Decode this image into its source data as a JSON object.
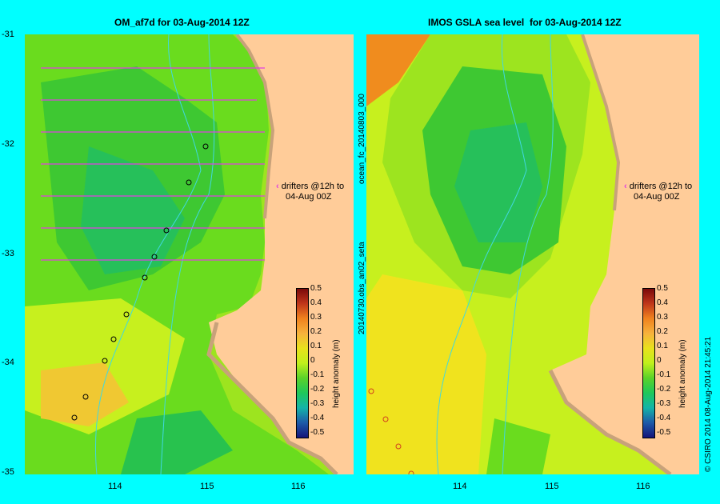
{
  "panels": [
    {
      "title": "OM_af7d for 03-Aug-2014 12Z"
    },
    {
      "title": "IMOS GSLA sea level  for 03-Aug-2014 12Z"
    }
  ],
  "yticks": [
    "-31",
    "-32",
    "-33",
    "-34",
    "-35"
  ],
  "xticks_left": [
    "114",
    "115",
    "116"
  ],
  "xticks_right": [
    "114",
    "115",
    "116"
  ],
  "drifter_note": {
    "line1": "drifters @12h to",
    "line2": "04-Aug 00Z"
  },
  "colorbar": {
    "title": "height anomaly (m)",
    "labels": [
      "0.5",
      "0.4",
      "0.3",
      "0.2",
      "0.1",
      "0",
      "-0.1",
      "-0.2",
      "-0.3",
      "-0.4",
      "-0.5"
    ],
    "colors": [
      "#7a0a0a",
      "#c0361a",
      "#f0821e",
      "#f7b23c",
      "#e8e21c",
      "#c0f01c",
      "#5ad22a",
      "#1ec85a",
      "#14b4a8",
      "#1e5aa8",
      "#14147a"
    ]
  },
  "side_text": {
    "vertical_label": "20140730.obs_an02_seta",
    "vertical_label2": "ocean_fc_20140803_000",
    "credit": "© CSIRO 2014   08-Aug-2014 21:45:21"
  },
  "colors": {
    "land": "#FFCC99",
    "coast": "#C8A27A",
    "background": "#00FFFF",
    "arrows": "#E040E0"
  }
}
